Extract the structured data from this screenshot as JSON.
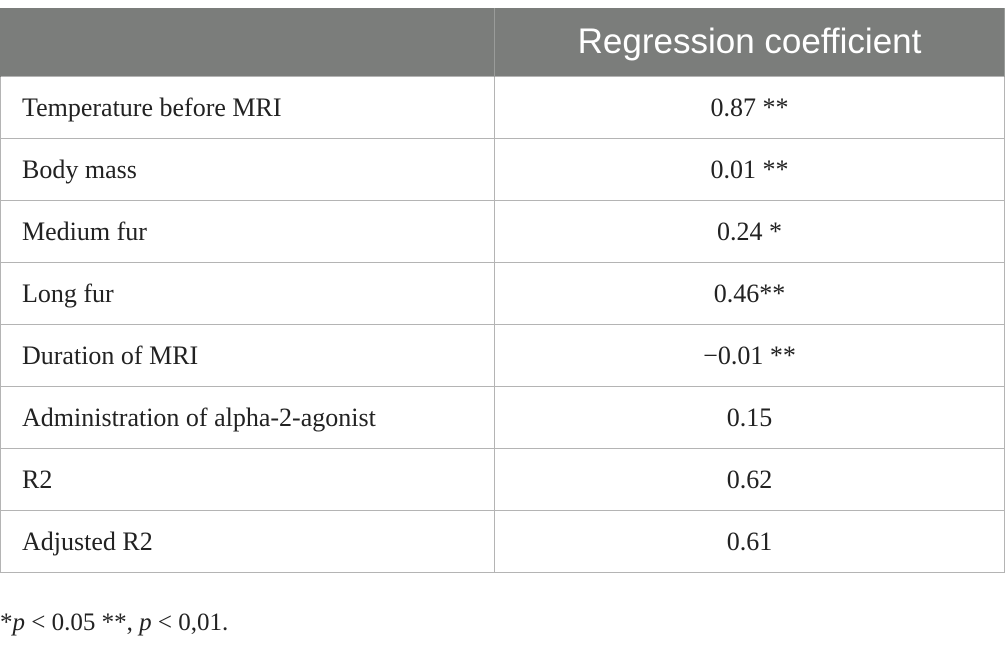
{
  "table": {
    "header": {
      "col1": "",
      "col2": "Regression coefficient"
    },
    "rows": [
      {
        "label": "Temperature before MRI",
        "value": "0.87 **"
      },
      {
        "label": "Body mass",
        "value": "0.01 **"
      },
      {
        "label": "Medium fur",
        "value": "0.24 *"
      },
      {
        "label": "Long fur",
        "value": "0.46**"
      },
      {
        "label": "Duration of MRI",
        "value": "−0.01 **"
      },
      {
        "label": "Administration of alpha-2-agonist",
        "value": "0.15"
      },
      {
        "label": "R2",
        "value": "0.62"
      },
      {
        "label": "Adjusted R2",
        "value": "0.61"
      }
    ]
  },
  "footnote": {
    "part1": "*",
    "p1": "p",
    "part2": " < 0.05 **, ",
    "p2": "p",
    "part3": " < 0,01."
  }
}
